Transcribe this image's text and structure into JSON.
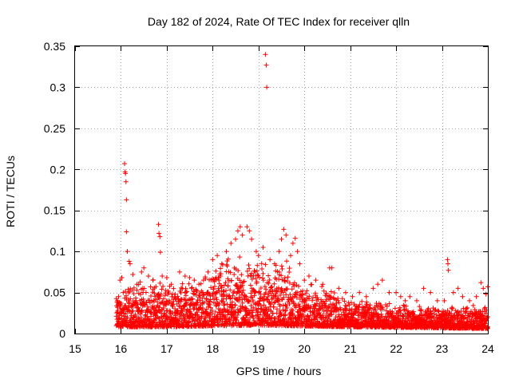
{
  "chart_data": {
    "type": "scatter",
    "title": "Day 182 of 2024, Rate Of TEC Index for receiver qlln",
    "xlabel": "GPS time / hours",
    "ylabel": "ROTI / TECUs",
    "xlim": [
      15,
      24
    ],
    "ylim": [
      0,
      0.35
    ],
    "xticks": [
      15,
      16,
      17,
      18,
      19,
      20,
      21,
      22,
      23,
      24
    ],
    "xtick_labels": [
      "15",
      "16",
      "17",
      "18",
      "19",
      "20",
      "21",
      "22",
      "23",
      "24"
    ],
    "yticks": [
      0,
      0.05,
      0.1,
      0.15,
      0.2,
      0.25,
      0.3,
      0.35
    ],
    "ytick_labels": [
      "0",
      "0.05",
      "0.1",
      "0.15",
      "0.2",
      "0.25",
      "0.3",
      "0.35"
    ],
    "grid": true,
    "marker": "+",
    "color": "#ff0000",
    "series": [
      {
        "name": "ROTI",
        "points": [
          [
            15.92,
            0.04
          ],
          [
            15.95,
            0.045
          ],
          [
            15.98,
            0.065
          ],
          [
            16.02,
            0.068
          ],
          [
            16.05,
            0.05
          ],
          [
            16.08,
            0.207
          ],
          [
            16.09,
            0.197
          ],
          [
            16.1,
            0.195
          ],
          [
            16.11,
            0.185
          ],
          [
            16.12,
            0.163
          ],
          [
            16.12,
            0.124
          ],
          [
            16.14,
            0.1
          ],
          [
            16.18,
            0.088
          ],
          [
            16.2,
            0.085
          ],
          [
            16.26,
            0.072
          ],
          [
            16.35,
            0.06
          ],
          [
            16.45,
            0.075
          ],
          [
            16.5,
            0.08
          ],
          [
            16.6,
            0.07
          ],
          [
            16.7,
            0.065
          ],
          [
            16.82,
            0.133
          ],
          [
            16.83,
            0.122
          ],
          [
            16.85,
            0.118
          ],
          [
            16.86,
            0.099
          ],
          [
            16.9,
            0.07
          ],
          [
            17.0,
            0.068
          ],
          [
            17.1,
            0.06
          ],
          [
            17.28,
            0.075
          ],
          [
            17.4,
            0.07
          ],
          [
            17.5,
            0.068
          ],
          [
            17.6,
            0.065
          ],
          [
            17.7,
            0.06
          ],
          [
            17.8,
            0.065
          ],
          [
            17.9,
            0.075
          ],
          [
            18.0,
            0.09
          ],
          [
            18.1,
            0.095
          ],
          [
            18.2,
            0.085
          ],
          [
            18.3,
            0.1
          ],
          [
            18.4,
            0.11
          ],
          [
            18.5,
            0.115
          ],
          [
            18.55,
            0.125
          ],
          [
            18.6,
            0.13
          ],
          [
            18.65,
            0.12
          ],
          [
            18.75,
            0.13
          ],
          [
            18.8,
            0.125
          ],
          [
            18.85,
            0.115
          ],
          [
            18.95,
            0.1
          ],
          [
            19.0,
            0.095
          ],
          [
            19.1,
            0.105
          ],
          [
            19.15,
            0.34
          ],
          [
            19.17,
            0.327
          ],
          [
            19.18,
            0.3
          ],
          [
            19.25,
            0.09
          ],
          [
            19.35,
            0.085
          ],
          [
            19.45,
            0.1
          ],
          [
            19.5,
            0.115
          ],
          [
            19.55,
            0.127
          ],
          [
            19.6,
            0.12
          ],
          [
            19.7,
            0.095
          ],
          [
            19.75,
            0.11
          ],
          [
            19.8,
            0.116
          ],
          [
            19.85,
            0.1
          ],
          [
            19.9,
            0.085
          ],
          [
            20.0,
            0.065
          ],
          [
            20.1,
            0.07
          ],
          [
            20.25,
            0.065
          ],
          [
            20.4,
            0.06
          ],
          [
            20.55,
            0.08
          ],
          [
            20.6,
            0.08
          ],
          [
            20.75,
            0.055
          ],
          [
            20.9,
            0.05
          ],
          [
            21.05,
            0.045
          ],
          [
            21.2,
            0.05
          ],
          [
            21.35,
            0.045
          ],
          [
            21.5,
            0.055
          ],
          [
            21.6,
            0.06
          ],
          [
            21.7,
            0.065
          ],
          [
            21.85,
            0.05
          ],
          [
            22.0,
            0.05
          ],
          [
            22.1,
            0.045
          ],
          [
            22.2,
            0.04
          ],
          [
            22.3,
            0.045
          ],
          [
            22.45,
            0.04
          ],
          [
            22.6,
            0.055
          ],
          [
            22.75,
            0.05
          ],
          [
            22.9,
            0.04
          ],
          [
            23.05,
            0.04
          ],
          [
            23.12,
            0.09
          ],
          [
            23.13,
            0.085
          ],
          [
            23.14,
            0.077
          ],
          [
            23.25,
            0.05
          ],
          [
            23.35,
            0.055
          ],
          [
            23.45,
            0.045
          ],
          [
            23.6,
            0.04
          ],
          [
            23.75,
            0.045
          ],
          [
            23.85,
            0.062
          ],
          [
            23.9,
            0.055
          ],
          [
            23.96,
            0.048
          ],
          [
            24.0,
            0.057
          ]
        ]
      }
    ],
    "dense_band": {
      "description_free": true,
      "x_start": 15.9,
      "x_end": 24.0,
      "step_hours": 0.005,
      "envelope": [
        [
          15.9,
          0.045
        ],
        [
          16.3,
          0.06
        ],
        [
          16.8,
          0.065
        ],
        [
          17.3,
          0.06
        ],
        [
          17.8,
          0.07
        ],
        [
          18.2,
          0.085
        ],
        [
          18.6,
          0.1
        ],
        [
          19.0,
          0.085
        ],
        [
          19.5,
          0.09
        ],
        [
          20.0,
          0.06
        ],
        [
          20.5,
          0.055
        ],
        [
          21.0,
          0.04
        ],
        [
          21.5,
          0.04
        ],
        [
          22.0,
          0.035
        ],
        [
          22.5,
          0.032
        ],
        [
          23.0,
          0.03
        ],
        [
          23.5,
          0.032
        ],
        [
          24.0,
          0.035
        ]
      ],
      "floor": [
        [
          15.9,
          0.008
        ],
        [
          17.0,
          0.008
        ],
        [
          19.0,
          0.01
        ],
        [
          21.0,
          0.008
        ],
        [
          24.0,
          0.006
        ]
      ]
    }
  }
}
